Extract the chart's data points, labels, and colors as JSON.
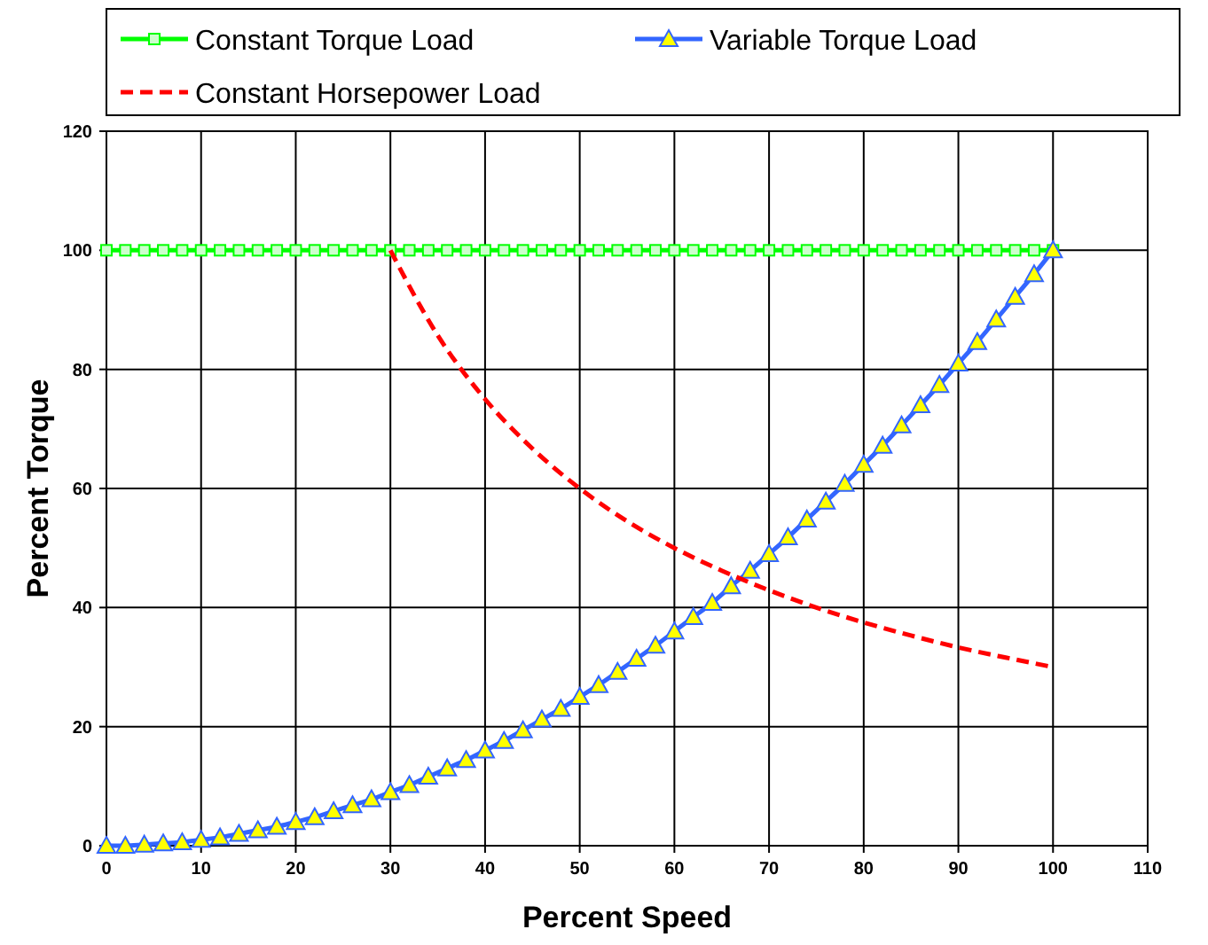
{
  "chart_data": {
    "type": "line",
    "xlabel": "Percent Speed",
    "ylabel": "Percent Torque",
    "xlim": [
      0,
      110
    ],
    "xticks": [
      0,
      10,
      20,
      30,
      40,
      50,
      60,
      70,
      80,
      90,
      100,
      110
    ],
    "ylim": [
      0,
      120
    ],
    "yticks": [
      0,
      20,
      40,
      60,
      80,
      100,
      120
    ],
    "grid": true,
    "legend": "top",
    "x": [
      0,
      2,
      4,
      6,
      8,
      10,
      12,
      14,
      16,
      18,
      20,
      22,
      24,
      26,
      28,
      30,
      32,
      34,
      36,
      38,
      40,
      42,
      44,
      46,
      48,
      50,
      52,
      54,
      56,
      58,
      60,
      62,
      64,
      66,
      68,
      70,
      72,
      74,
      76,
      78,
      80,
      82,
      84,
      86,
      88,
      90,
      92,
      94,
      96,
      98,
      100
    ],
    "series": [
      {
        "name": "Constant Torque Load",
        "color": "#00ff00",
        "marker": "square",
        "line_style": "solid",
        "values": [
          100,
          100,
          100,
          100,
          100,
          100,
          100,
          100,
          100,
          100,
          100,
          100,
          100,
          100,
          100,
          100,
          100,
          100,
          100,
          100,
          100,
          100,
          100,
          100,
          100,
          100,
          100,
          100,
          100,
          100,
          100,
          100,
          100,
          100,
          100,
          100,
          100,
          100,
          100,
          100,
          100,
          100,
          100,
          100,
          100,
          100,
          100,
          100,
          100,
          100,
          100
        ]
      },
      {
        "name": "Variable Torque Load",
        "color": "#3366ff",
        "marker": "triangle",
        "line_style": "solid",
        "values": [
          0,
          0,
          0.2,
          0.4,
          0.6,
          1,
          1.4,
          2,
          2.6,
          3.2,
          4,
          4.8,
          5.8,
          6.8,
          7.8,
          9,
          10.2,
          11.6,
          13,
          14.4,
          16,
          17.6,
          19.4,
          21.2,
          23,
          25,
          27,
          29.2,
          31.4,
          33.6,
          36,
          38.4,
          40.8,
          43.6,
          46.2,
          49,
          51.8,
          54.8,
          57.8,
          60.8,
          64,
          67.2,
          70.6,
          74,
          77.4,
          81,
          84.6,
          88.4,
          92.2,
          96,
          100
        ]
      },
      {
        "name": "Constant Horsepower Load",
        "color": "#ff0000",
        "marker": "none",
        "line_style": "dashed",
        "x": [
          30,
          35,
          40,
          45,
          50,
          55,
          60,
          65,
          70,
          75,
          80,
          85,
          90,
          95,
          100
        ],
        "values": [
          100,
          85.7,
          75,
          66.7,
          60,
          54.5,
          50,
          46.2,
          42.9,
          40,
          37.5,
          35.3,
          33.3,
          31.6,
          30
        ]
      }
    ]
  }
}
